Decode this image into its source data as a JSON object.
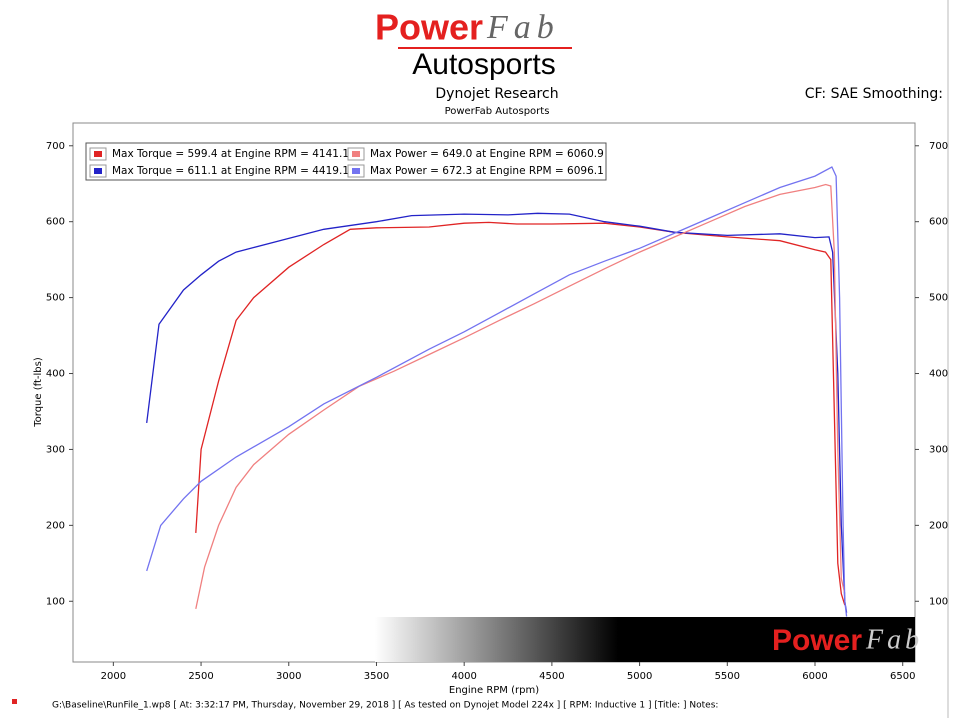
{
  "header": {
    "logo_power": "Power",
    "logo_fab": "Fab",
    "logo_autosports": "Autosports",
    "cf": "CF: SAE Smoothing:"
  },
  "footer": "G:\\Baseline\\RunFile_1.wp8 [ At: 3:32:17 PM, Thursday, November 29, 2018 ] [ As tested on Dynojet Model 224x ] [ RPM: Inductive 1 ] [Title: ]  Notes:",
  "chart_data": {
    "type": "line",
    "title": "Dynojet Research",
    "subtitle": "PowerFab Autosports",
    "x_label": "Engine RPM (rpm)",
    "y_label": "Torque (ft-lbs)",
    "xlim": [
      1770,
      6570
    ],
    "xticks": [
      2000,
      2500,
      3000,
      3500,
      4000,
      4500,
      5000,
      5500,
      6000,
      6500
    ],
    "ylim": [
      20,
      730
    ],
    "yticks": [
      100,
      200,
      300,
      400,
      500,
      600,
      700
    ],
    "grid": false,
    "legend": "top-left",
    "series": [
      {
        "name": "Max Torque = 599.4 at Engine RPM = 4141.1",
        "color": "#e02424",
        "x": [
          2470,
          2500,
          2600,
          2700,
          2800,
          3000,
          3200,
          3350,
          3500,
          3800,
          4000,
          4141,
          4300,
          4500,
          4800,
          5000,
          5200,
          5500,
          5800,
          6000,
          6060,
          6090,
          6110,
          6130,
          6150,
          6170
        ],
        "values": [
          190,
          300,
          390,
          470,
          500,
          540,
          570,
          590,
          592,
          593,
          598,
          599,
          597,
          597,
          598,
          593,
          586,
          580,
          575,
          563,
          560,
          550,
          350,
          150,
          110,
          95
        ]
      },
      {
        "name": "Max Torque = 611.1 at Engine RPM = 4419.1",
        "color": "#2323c8",
        "x": [
          2190,
          2260,
          2400,
          2500,
          2600,
          2700,
          2800,
          3000,
          3200,
          3500,
          3700,
          4000,
          4250,
          4419,
          4600,
          4800,
          5000,
          5200,
          5500,
          5800,
          6000,
          6080,
          6100,
          6130,
          6150,
          6170,
          6180
        ],
        "values": [
          335,
          465,
          510,
          530,
          548,
          560,
          566,
          578,
          590,
          600,
          608,
          610,
          609,
          611,
          610,
          600,
          594,
          586,
          582,
          584,
          579,
          580,
          560,
          400,
          200,
          100,
          85
        ]
      },
      {
        "name": "Max Power = 649.0 at Engine RPM = 6060.9",
        "color": "#f08080",
        "x": [
          2470,
          2520,
          2600,
          2700,
          2800,
          3000,
          3200,
          3400,
          3600,
          3800,
          4000,
          4200,
          4400,
          4600,
          4800,
          5000,
          5200,
          5400,
          5600,
          5800,
          6000,
          6061,
          6090,
          6110,
          6130,
          6150,
          6170
        ],
        "values": [
          90,
          145,
          200,
          250,
          280,
          320,
          352,
          383,
          403,
          425,
          447,
          470,
          492,
          515,
          538,
          560,
          580,
          600,
          620,
          636,
          645,
          649,
          647,
          560,
          300,
          130,
          110
        ]
      },
      {
        "name": "Max Power = 672.3 at Engine RPM = 6096.1",
        "color": "#7373f0",
        "x": [
          2190,
          2270,
          2400,
          2500,
          2700,
          3000,
          3200,
          3500,
          3800,
          4000,
          4200,
          4400,
          4600,
          4800,
          5000,
          5200,
          5400,
          5600,
          5800,
          6000,
          6096,
          6120,
          6140,
          6160,
          6170,
          6180
        ],
        "values": [
          140,
          200,
          235,
          258,
          290,
          330,
          360,
          395,
          432,
          455,
          480,
          505,
          530,
          548,
          565,
          585,
          605,
          625,
          645,
          660,
          672,
          660,
          500,
          200,
          100,
          80
        ]
      }
    ]
  }
}
